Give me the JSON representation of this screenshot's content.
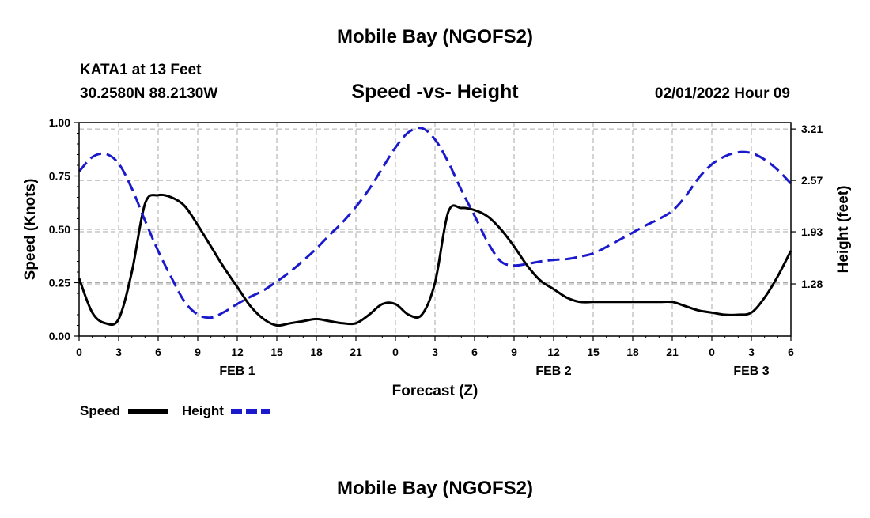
{
  "header": {
    "main_title": "Mobile Bay (NGOFS2)",
    "station": "KATA1 at 13 Feet",
    "coords": "30.2580N  88.2130W",
    "chart_title": "Speed -vs- Height",
    "timestamp": "02/01/2022 Hour 09"
  },
  "footer": {
    "repeat_title": "Mobile Bay (NGOFS2)"
  },
  "legend": {
    "speed_label": "Speed",
    "height_label": "Height"
  },
  "colors": {
    "speed": "#000000",
    "height": "#1a1acc",
    "grid": "#aaaaaa"
  },
  "chart_data": {
    "type": "line",
    "title": "Speed -vs- Height",
    "xlabel": "Forecast (Z)",
    "ylabel": "Speed (Knots)",
    "y2label": "Height (feet)",
    "x_range": [
      0,
      54
    ],
    "ylim": [
      0,
      1.0
    ],
    "y2lim": [
      0.63,
      3.29
    ],
    "x_ticks": [
      0,
      3,
      6,
      9,
      12,
      15,
      18,
      21,
      24,
      27,
      30,
      33,
      36,
      39,
      42,
      45,
      48,
      51,
      54
    ],
    "x_tick_labels": [
      "0",
      "3",
      "6",
      "9",
      "12",
      "15",
      "18",
      "21",
      "0",
      "3",
      "6",
      "9",
      "12",
      "15",
      "18",
      "21",
      "0",
      "3",
      "6"
    ],
    "y_ticks": [
      0,
      0.25,
      0.5,
      0.75,
      1.0
    ],
    "y_tick_labels": [
      "0.00",
      "0.25",
      "0.50",
      "0.75",
      "1.00"
    ],
    "y2_ticks": [
      1.28,
      1.93,
      2.57,
      3.21
    ],
    "y2_tick_labels": [
      "1.28",
      "1.93",
      "2.57",
      "3.21"
    ],
    "day_labels": [
      {
        "label": "FEB 1",
        "x": 12
      },
      {
        "label": "FEB 2",
        "x": 36
      },
      {
        "label": "FEB 3",
        "x": 51
      }
    ],
    "grid": true,
    "series": [
      {
        "name": "Speed",
        "axis": "left",
        "style": "solid",
        "x": [
          0,
          1,
          2,
          3,
          4,
          5,
          6,
          7,
          8,
          9,
          10,
          11,
          12,
          13,
          14,
          15,
          16,
          17,
          18,
          19,
          20,
          21,
          22,
          23,
          24,
          25,
          26,
          27,
          28,
          29,
          30,
          31,
          32,
          33,
          34,
          35,
          36,
          37,
          38,
          39,
          40,
          41,
          42,
          43,
          44,
          45,
          46,
          47,
          48,
          49,
          50,
          51,
          52,
          53,
          54
        ],
        "values": [
          0.27,
          0.11,
          0.06,
          0.08,
          0.3,
          0.62,
          0.66,
          0.65,
          0.61,
          0.52,
          0.42,
          0.32,
          0.23,
          0.14,
          0.08,
          0.05,
          0.06,
          0.07,
          0.08,
          0.07,
          0.06,
          0.06,
          0.1,
          0.15,
          0.15,
          0.1,
          0.1,
          0.25,
          0.58,
          0.6,
          0.59,
          0.56,
          0.5,
          0.42,
          0.33,
          0.26,
          0.22,
          0.18,
          0.16,
          0.16,
          0.16,
          0.16,
          0.16,
          0.16,
          0.16,
          0.16,
          0.14,
          0.12,
          0.11,
          0.1,
          0.1,
          0.11,
          0.18,
          0.28,
          0.4
        ]
      },
      {
        "name": "Height",
        "axis": "right",
        "style": "dashed",
        "x": [
          0,
          1,
          2,
          3,
          4,
          5,
          6,
          7,
          8,
          9,
          10,
          11,
          12,
          13,
          14,
          15,
          16,
          17,
          18,
          19,
          20,
          21,
          22,
          23,
          24,
          25,
          26,
          27,
          28,
          29,
          30,
          31,
          32,
          33,
          34,
          35,
          36,
          37,
          38,
          39,
          40,
          41,
          42,
          43,
          44,
          45,
          46,
          47,
          48,
          49,
          50,
          51,
          52,
          53,
          54
        ],
        "values": [
          2.68,
          2.86,
          2.9,
          2.78,
          2.47,
          2.07,
          1.69,
          1.36,
          1.06,
          0.9,
          0.86,
          0.93,
          1.03,
          1.12,
          1.2,
          1.31,
          1.43,
          1.57,
          1.72,
          1.89,
          2.05,
          2.24,
          2.46,
          2.72,
          2.98,
          3.17,
          3.22,
          3.08,
          2.8,
          2.45,
          2.13,
          1.8,
          1.56,
          1.51,
          1.53,
          1.56,
          1.58,
          1.59,
          1.62,
          1.66,
          1.74,
          1.83,
          1.92,
          2.01,
          2.09,
          2.19,
          2.37,
          2.6,
          2.77,
          2.87,
          2.92,
          2.91,
          2.83,
          2.7,
          2.53
        ]
      }
    ]
  }
}
